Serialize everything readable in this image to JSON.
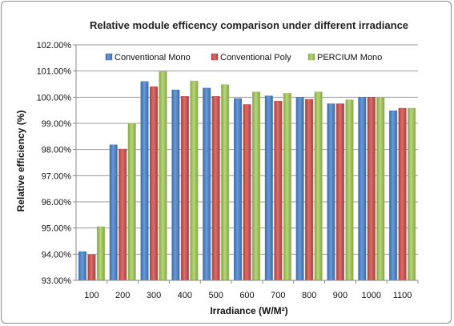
{
  "chart_data": {
    "type": "bar",
    "title": "Relative module efficency comparison under different irradiance",
    "xlabel": "Irradiance (W/M²)",
    "ylabel": "Relative efficiency (%)",
    "categories": [
      "100",
      "200",
      "300",
      "400",
      "500",
      "600",
      "700",
      "800",
      "900",
      "1000",
      "1100"
    ],
    "ylim": [
      93,
      102
    ],
    "yticks": [
      "93.00%",
      "94.00%",
      "95.00%",
      "96.00%",
      "97.00%",
      "98.00%",
      "99.00%",
      "100.00%",
      "101.00%",
      "102.00%"
    ],
    "grid": true,
    "legend_position": "top",
    "series": [
      {
        "name": "Conventional Mono",
        "color": "#4a7ebb",
        "values": [
          94.1,
          98.18,
          100.6,
          100.28,
          100.35,
          99.95,
          100.05,
          100.0,
          99.75,
          100.0,
          99.48
        ]
      },
      {
        "name": "Conventional Poly",
        "color": "#c0504d",
        "values": [
          93.98,
          98.02,
          100.4,
          100.03,
          100.03,
          99.72,
          99.85,
          99.92,
          99.75,
          100.0,
          99.58
        ]
      },
      {
        "name": "PERCIUM Mono",
        "color": "#9bbb59",
        "values": [
          95.05,
          99.0,
          100.98,
          100.62,
          100.48,
          100.2,
          100.15,
          100.2,
          99.9,
          100.0,
          99.58
        ]
      }
    ]
  }
}
